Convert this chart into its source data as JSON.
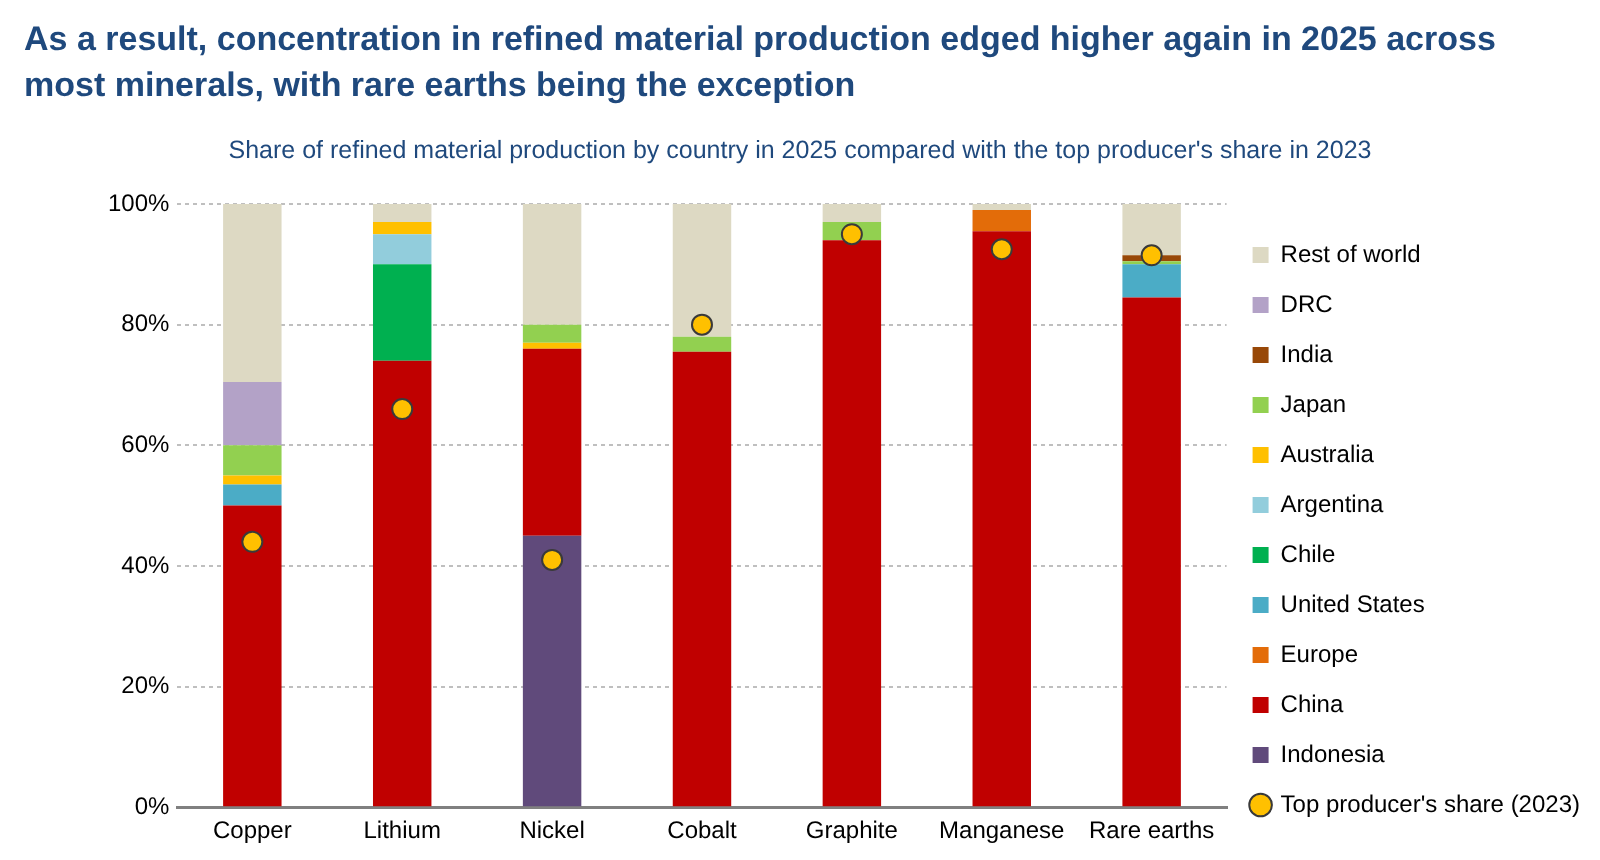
{
  "chart_data": {
    "type": "bar",
    "title": "As a result, concentration in refined material production edged higher again in 2025 across most minerals, with rare earths being the exception",
    "subtitle": "Share of refined material production by country in 2025 compared with the top producer's share in 2023",
    "categories": [
      "Copper",
      "Lithium",
      "Nickel",
      "Cobalt",
      "Graphite",
      "Manganese",
      "Rare earths"
    ],
    "stacked": true,
    "series": [
      {
        "name": "Indonesia",
        "color": "#604a7b",
        "values": [
          null,
          null,
          45,
          null,
          null,
          null,
          null
        ]
      },
      {
        "name": "China",
        "color": "#c00000",
        "values": [
          50,
          74,
          31,
          75.5,
          94,
          95.5,
          84.5
        ]
      },
      {
        "name": "Europe",
        "color": "#e36c09",
        "values": [
          null,
          null,
          null,
          null,
          null,
          3.5,
          null
        ]
      },
      {
        "name": "United States",
        "color": "#4bacc6",
        "values": [
          3.5,
          null,
          null,
          null,
          null,
          null,
          5.5
        ]
      },
      {
        "name": "Chile",
        "color": "#00b050",
        "values": [
          null,
          16,
          null,
          null,
          null,
          null,
          null
        ]
      },
      {
        "name": "Argentina",
        "color": "#92cddc",
        "values": [
          null,
          5,
          null,
          null,
          null,
          null,
          null
        ]
      },
      {
        "name": "Australia",
        "color": "#ffc000",
        "values": [
          1.5,
          2,
          1,
          null,
          null,
          null,
          null
        ]
      },
      {
        "name": "Japan",
        "color": "#92d050",
        "values": [
          5,
          null,
          3,
          2.5,
          3,
          null,
          0.5
        ]
      },
      {
        "name": "India",
        "color": "#984807",
        "values": [
          null,
          null,
          null,
          null,
          null,
          null,
          1
        ]
      },
      {
        "name": "DRC",
        "color": "#b3a2c7",
        "values": [
          10.5,
          null,
          null,
          null,
          null,
          null,
          null
        ]
      },
      {
        "name": "Rest of world",
        "color": "#ddd9c3",
        "values": [
          29.5,
          3,
          20,
          22,
          3,
          1,
          8.5
        ]
      },
      {
        "name": "Top producer's share (2023)",
        "type": "scatter",
        "color": "#ffc000",
        "x": [
          "Copper",
          "Lithium",
          "Nickel",
          "Cobalt",
          "Graphite",
          "Manganese",
          "Rare earths"
        ],
        "values": [
          44,
          66,
          41,
          80,
          95,
          92.5,
          91.5
        ]
      }
    ],
    "ylim": [
      0,
      100
    ],
    "yticks": [
      {
        "value": 0,
        "label": "0%"
      },
      {
        "value": 20,
        "label": "20%"
      },
      {
        "value": 40,
        "label": "40%"
      },
      {
        "value": 60,
        "label": "60%"
      },
      {
        "value": 80,
        "label": "80%"
      },
      {
        "value": 100,
        "label": "100%"
      }
    ],
    "grid": "y",
    "legend": "right",
    "marker": "circle"
  }
}
